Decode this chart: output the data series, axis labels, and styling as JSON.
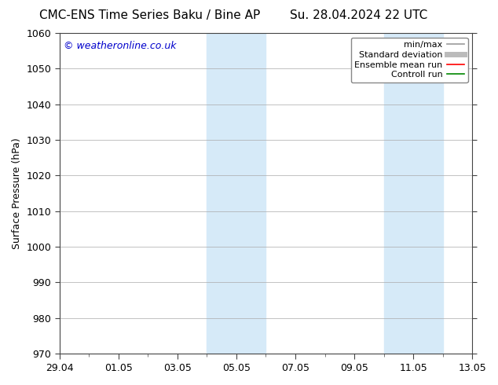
{
  "title_left": "CMC-ENS Time Series Baku / Bine AP",
  "title_right": "Su. 28.04.2024 22 UTC",
  "ylabel": "Surface Pressure (hPa)",
  "ylim": [
    970,
    1060
  ],
  "yticks": [
    970,
    980,
    990,
    1000,
    1010,
    1020,
    1030,
    1040,
    1050,
    1060
  ],
  "xlim_num": [
    0,
    14
  ],
  "xtick_label_positions": [
    0,
    2,
    4,
    6,
    8,
    10,
    12,
    14
  ],
  "xtick_labels": [
    "29.04",
    "01.05",
    "03.05",
    "05.05",
    "07.05",
    "09.05",
    "11.05",
    "13.05"
  ],
  "shaded_bands": [
    {
      "xmin": 5.0,
      "xmax": 7.0
    },
    {
      "xmin": 11.0,
      "xmax": 13.0
    }
  ],
  "band_color": "#d6eaf8",
  "watermark": "© weatheronline.co.uk",
  "watermark_color": "#0000cc",
  "background_color": "#ffffff",
  "grid_color": "#aaaaaa",
  "legend_items": [
    {
      "label": "min/max",
      "color": "#999999",
      "lw": 1.2
    },
    {
      "label": "Standard deviation",
      "color": "#bbbbbb",
      "lw": 5
    },
    {
      "label": "Ensemble mean run",
      "color": "#ff0000",
      "lw": 1.2
    },
    {
      "label": "Controll run",
      "color": "#008800",
      "lw": 1.2
    }
  ],
  "title_fontsize": 11,
  "ylabel_fontsize": 9,
  "tick_fontsize": 9,
  "legend_fontsize": 8,
  "watermark_fontsize": 9
}
